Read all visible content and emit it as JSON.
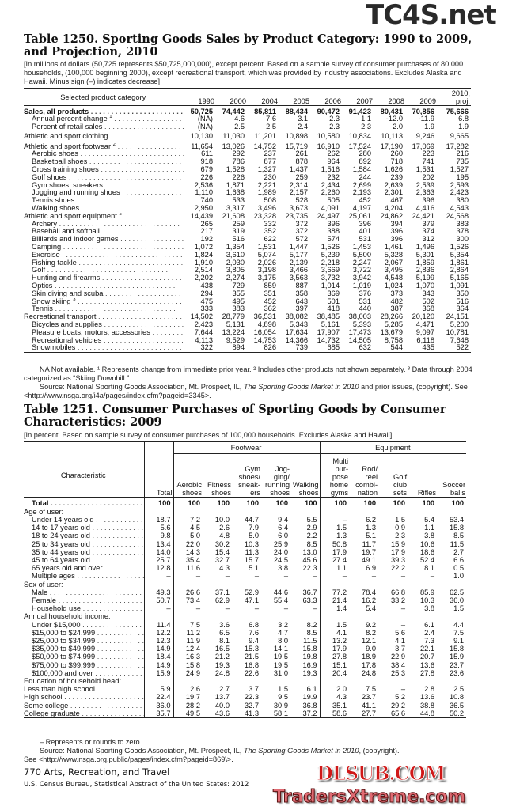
{
  "watermarks": {
    "top": "TC4S.net",
    "middle": "DLSUB.COM",
    "bottom": "TradersXtreme.com"
  },
  "t1250": {
    "title": "Table 1250. Sporting Goods Sales by Product Category: 1990 to 2009, and Projection, 2010",
    "headnote": "[In millions of dollars (50,725 represents $50,725,000,000), except percent. Based on a sample survey of consumer purchases of 80,000 households, (100,000 beginning 2000), except recreational transport, which was provided by industry associations. Excludes Alaska and Hawaii. Minus sign (–) indicates decrease]",
    "stub_header": "Selected product category",
    "columns": [
      "1990",
      "2000",
      "2004",
      "2005",
      "2006",
      "2007",
      "2008",
      "2009",
      "2010, proj."
    ],
    "rows": [
      {
        "label": "Sales, all products",
        "bold": true,
        "values": [
          "50,725",
          "74,442",
          "85,811",
          "88,434",
          "90,472",
          "91,423",
          "80,431",
          "70,856",
          "75,666"
        ]
      },
      {
        "label": "Annual percent change",
        "sup": "1",
        "indent": 1,
        "values": [
          "(NA)",
          "4.6",
          "7.6",
          "3.1",
          "2.3",
          "1.1",
          "-12.0",
          "-11.9",
          "6.8"
        ]
      },
      {
        "label": "Percent of retail sales",
        "indent": 1,
        "values": [
          "(NA)",
          "2.5",
          "2.5",
          "2.4",
          "2.3",
          "2.3",
          "2.0",
          "1.9",
          "1.9"
        ]
      },
      {
        "label": "Athletic and sport clothing",
        "gap": true,
        "values": [
          "10,130",
          "11,030",
          "11,201",
          "10,898",
          "10,580",
          "10,834",
          "10,113",
          "9,246",
          "9,665"
        ]
      },
      {
        "label": "Athletic and sport footwear",
        "sup": "2",
        "values": [
          "11,654",
          "13,026",
          "14,752",
          "15,719",
          "16,910",
          "17,524",
          "17,190",
          "17,069",
          "17,282"
        ]
      },
      {
        "label": "Aerobic shoes",
        "indent": 1,
        "values": [
          "611",
          "292",
          "237",
          "261",
          "262",
          "280",
          "260",
          "223",
          "216"
        ]
      },
      {
        "label": "Basketball shoes",
        "indent": 1,
        "values": [
          "918",
          "786",
          "877",
          "878",
          "964",
          "892",
          "718",
          "741",
          "735"
        ]
      },
      {
        "label": "Cross training shoes",
        "indent": 1,
        "values": [
          "679",
          "1,528",
          "1,327",
          "1,437",
          "1,516",
          "1,584",
          "1,626",
          "1,531",
          "1,527"
        ]
      },
      {
        "label": "Golf shoes",
        "indent": 1,
        "values": [
          "226",
          "226",
          "230",
          "259",
          "232",
          "244",
          "239",
          "202",
          "195"
        ]
      },
      {
        "label": "Gym shoes, sneakers",
        "indent": 1,
        "values": [
          "2,536",
          "1,871",
          "2,221",
          "2,314",
          "2,434",
          "2,699",
          "2,639",
          "2,539",
          "2,593"
        ]
      },
      {
        "label": "Jogging and running shoes",
        "indent": 1,
        "values": [
          "1,110",
          "1,638",
          "1,989",
          "2,157",
          "2,260",
          "2,193",
          "2,301",
          "2,363",
          "2,423"
        ]
      },
      {
        "label": "Tennis shoes",
        "indent": 1,
        "values": [
          "740",
          "533",
          "508",
          "528",
          "505",
          "452",
          "467",
          "396",
          "380"
        ]
      },
      {
        "label": "Walking shoes",
        "indent": 1,
        "values": [
          "2,950",
          "3,317",
          "3,496",
          "3,673",
          "4,091",
          "4,197",
          "4,204",
          "4,416",
          "4,543"
        ]
      },
      {
        "label": "Athletic and sport equipment",
        "sup": "2",
        "values": [
          "14,439",
          "21,608",
          "23,328",
          "23,735",
          "24,497",
          "25,061",
          "24,862",
          "24,421",
          "24,568"
        ]
      },
      {
        "label": "Archery",
        "indent": 1,
        "values": [
          "265",
          "259",
          "332",
          "372",
          "396",
          "396",
          "394",
          "379",
          "383"
        ]
      },
      {
        "label": "Baseball and softball",
        "indent": 1,
        "values": [
          "217",
          "319",
          "352",
          "372",
          "388",
          "401",
          "396",
          "374",
          "378"
        ]
      },
      {
        "label": "Billiards and indoor games",
        "indent": 1,
        "values": [
          "192",
          "516",
          "622",
          "572",
          "574",
          "531",
          "396",
          "312",
          "300"
        ]
      },
      {
        "label": "Camping",
        "indent": 1,
        "values": [
          "1,072",
          "1,354",
          "1,531",
          "1,447",
          "1,526",
          "1,453",
          "1,461",
          "1,496",
          "1,526"
        ]
      },
      {
        "label": "Exercise",
        "indent": 1,
        "values": [
          "1,824",
          "3,610",
          "5,074",
          "5,177",
          "5,239",
          "5,500",
          "5,328",
          "5,301",
          "5,354"
        ]
      },
      {
        "label": "Fishing tackle",
        "indent": 1,
        "values": [
          "1,910",
          "2,030",
          "2,026",
          "2,139",
          "2,218",
          "2,247",
          "2,067",
          "1,859",
          "1,861"
        ]
      },
      {
        "label": "Golf",
        "indent": 1,
        "values": [
          "2,514",
          "3,805",
          "3,198",
          "3,466",
          "3,669",
          "3,722",
          "3,495",
          "2,836",
          "2,864"
        ]
      },
      {
        "label": "Hunting and firearms",
        "indent": 1,
        "values": [
          "2,202",
          "2,274",
          "3,175",
          "3,563",
          "3,732",
          "3,942",
          "4,548",
          "5,199",
          "5,165"
        ]
      },
      {
        "label": "Optics",
        "indent": 1,
        "values": [
          "438",
          "729",
          "859",
          "887",
          "1,014",
          "1,019",
          "1,024",
          "1,070",
          "1,091"
        ]
      },
      {
        "label": "Skin diving and scuba",
        "indent": 1,
        "values": [
          "294",
          "355",
          "351",
          "358",
          "369",
          "376",
          "373",
          "343",
          "350"
        ]
      },
      {
        "label": "Snow skiing",
        "sup": "3",
        "indent": 1,
        "values": [
          "475",
          "495",
          "452",
          "643",
          "501",
          "531",
          "482",
          "502",
          "516"
        ]
      },
      {
        "label": "Tennis",
        "indent": 1,
        "values": [
          "333",
          "383",
          "362",
          "397",
          "418",
          "440",
          "387",
          "368",
          "364"
        ]
      },
      {
        "label": "Recreational transport",
        "values": [
          "14,502",
          "28,779",
          "36,531",
          "38,082",
          "38,485",
          "38,003",
          "28,266",
          "20,120",
          "24,151"
        ]
      },
      {
        "label": "Bicycles and supplies",
        "indent": 1,
        "values": [
          "2,423",
          "5,131",
          "4,898",
          "5,343",
          "5,161",
          "5,393",
          "5,285",
          "4,471",
          "5,200"
        ]
      },
      {
        "label": "Pleasure boats, motors, accessories",
        "indent": 1,
        "values": [
          "7,644",
          "13,224",
          "16,054",
          "17,634",
          "17,907",
          "17,473",
          "13,679",
          "9,097",
          "10,781"
        ]
      },
      {
        "label": "Recreational vehicles",
        "indent": 1,
        "values": [
          "4,113",
          "9,529",
          "14,753",
          "14,366",
          "14,732",
          "14,505",
          "8,758",
          "6,118",
          "7,648"
        ]
      },
      {
        "label": "Snowmobiles",
        "indent": 1,
        "values": [
          "322",
          "894",
          "826",
          "739",
          "685",
          "632",
          "544",
          "435",
          "522"
        ]
      }
    ],
    "footnote": "NA Not available. ¹ Represents change from immediate prior year. ² Includes other products not shown separately. ³ Data through 2004 categorized as “Skiing Downhill.”",
    "source_prefix": "Source: National Sporting Goods Association, Mt. Prospect, IL, ",
    "source_title": "The Sporting Goods Market in 2010",
    "source_suffix": " and prior issues, (copyright). See <http://www.nsga.org/i4a/pages/index.cfm?pageid=3345>."
  },
  "t1251": {
    "title": "Table 1251. Consumer Purchases of Sporting Goods by Consumer Characteristics: 2009",
    "headnote": "[In percent. Based on sample survey of consumer purchases of 100,000 households. Excludes Alaska and Hawaii]",
    "stub_header": "Characteristic",
    "group_footwear": "Footwear",
    "group_equipment": "Equipment",
    "columns": [
      "Total",
      "Aerobic shoes",
      "Fitness shoes",
      "Gym shoes/ sneak- ers",
      "Jog- ging/ running shoes",
      "Walking shoes",
      "Multi pur- pose home gyms",
      "Rod/ reel combi- nation",
      "Golf club sets",
      "Rifles",
      "Soccer balls"
    ],
    "rows": [
      {
        "label": "Total",
        "bold": true,
        "indent": 1,
        "values": [
          "100",
          "100",
          "100",
          "100",
          "100",
          "100",
          "100",
          "100",
          "100",
          "100",
          "100"
        ]
      },
      {
        "label": "Age of user:",
        "heading": true,
        "values": []
      },
      {
        "label": "Under 14 years old",
        "indent": 1,
        "values": [
          "18.7",
          "7.2",
          "10.0",
          "44.7",
          "9.4",
          "5.5",
          "–",
          "6.2",
          "1.5",
          "5.4",
          "53.4"
        ]
      },
      {
        "label": "14 to 17 years old",
        "indent": 1,
        "values": [
          "5.6",
          "4.5",
          "2.6",
          "7.9",
          "6.4",
          "2.9",
          "1.5",
          "1.3",
          "0.9",
          "1.1",
          "15.8"
        ]
      },
      {
        "label": "18 to 24 years old",
        "indent": 1,
        "values": [
          "9.8",
          "5.0",
          "4.8",
          "5.0",
          "6.0",
          "2.2",
          "1.3",
          "5.1",
          "2.3",
          "3.8",
          "8.5"
        ]
      },
      {
        "label": "25 to 34 years old",
        "indent": 1,
        "values": [
          "13.4",
          "22.0",
          "30.2",
          "10.3",
          "25.9",
          "8.5",
          "50.8",
          "11.7",
          "15.9",
          "10.6",
          "11.5"
        ]
      },
      {
        "label": "35 to 44 years old",
        "indent": 1,
        "values": [
          "14.0",
          "14.3",
          "15.4",
          "11.3",
          "24.0",
          "13.0",
          "17.9",
          "19.7",
          "17.9",
          "18.6",
          "2.7"
        ]
      },
      {
        "label": "45 to 64 years old",
        "indent": 1,
        "values": [
          "25.7",
          "35.4",
          "32.7",
          "15.7",
          "24.5",
          "45.6",
          "27.4",
          "49.1",
          "39.3",
          "52.4",
          "6.6"
        ]
      },
      {
        "label": "65 years old and over",
        "indent": 1,
        "values": [
          "12.8",
          "11.6",
          "4.3",
          "5.1",
          "3.8",
          "22.3",
          "1.1",
          "6.9",
          "22.2",
          "8.1",
          "0.5"
        ]
      },
      {
        "label": "Multiple ages",
        "indent": 1,
        "values": [
          "–",
          "–",
          "–",
          "–",
          "–",
          "–",
          "–",
          "–",
          "–",
          "–",
          "1.0"
        ]
      },
      {
        "label": "Sex of user:",
        "heading": true,
        "values": []
      },
      {
        "label": "Male",
        "indent": 1,
        "values": [
          "49.3",
          "26.6",
          "37.1",
          "52.9",
          "44.6",
          "36.7",
          "77.2",
          "78.4",
          "66.8",
          "85.9",
          "62.5"
        ]
      },
      {
        "label": "Female",
        "indent": 1,
        "values": [
          "50.7",
          "73.4",
          "62.9",
          "47.1",
          "55.4",
          "63.3",
          "21.4",
          "16.2",
          "33.2",
          "10.3",
          "36.0"
        ]
      },
      {
        "label": "Household use",
        "indent": 1,
        "values": [
          "–",
          "–",
          "–",
          "–",
          "–",
          "–",
          "1.4",
          "5.4",
          "–",
          "3.8",
          "1.5"
        ]
      },
      {
        "label": "Annual household income:",
        "heading": true,
        "values": []
      },
      {
        "label": "Under $15,000",
        "indent": 1,
        "values": [
          "11.4",
          "7.5",
          "3.6",
          "6.8",
          "3.2",
          "8.2",
          "1.5",
          "9.2",
          "–",
          "6.1",
          "4.4"
        ]
      },
      {
        "label": "$15,000 to $24,999",
        "indent": 1,
        "values": [
          "12.2",
          "11.2",
          "6.5",
          "7.6",
          "4.7",
          "8.5",
          "4.1",
          "8.2",
          "5.6",
          "2.4",
          "7.5"
        ]
      },
      {
        "label": "$25,000 to $34,999",
        "indent": 1,
        "values": [
          "12.3",
          "11.9",
          "8.1",
          "9.4",
          "8.0",
          "11.5",
          "13.2",
          "12.1",
          "4.1",
          "7.3",
          "9.1"
        ]
      },
      {
        "label": "$35,000 to $49,999",
        "indent": 1,
        "values": [
          "14.9",
          "12.4",
          "16.5",
          "15.3",
          "14.1",
          "15.8",
          "17.9",
          "9.0",
          "3.7",
          "22.1",
          "15.8"
        ]
      },
      {
        "label": "$50,000 to $74,999",
        "indent": 1,
        "values": [
          "18.4",
          "16.3",
          "21.2",
          "21.5",
          "19.5",
          "19.8",
          "27.8",
          "18.9",
          "22.9",
          "20.7",
          "15.9"
        ]
      },
      {
        "label": "$75,000 to $99,999",
        "indent": 1,
        "values": [
          "14.9",
          "15.8",
          "19.3",
          "16.8",
          "19.5",
          "16.9",
          "15.1",
          "17.8",
          "38.4",
          "13.6",
          "23.7"
        ]
      },
      {
        "label": "$100,000 and over",
        "indent": 1,
        "values": [
          "15.9",
          "24.9",
          "24.8",
          "22.6",
          "31.0",
          "19.3",
          "20.4",
          "24.8",
          "25.3",
          "27.8",
          "23.6"
        ]
      },
      {
        "label": "Education of household head:",
        "heading": true,
        "values": []
      },
      {
        "label": "Less than high school",
        "values": [
          "5.9",
          "2.6",
          "2.7",
          "3.7",
          "1.5",
          "6.1",
          "2.0",
          "7.5",
          "–",
          "2.8",
          "2.5"
        ]
      },
      {
        "label": "High school",
        "values": [
          "22.4",
          "19.7",
          "13.7",
          "22.3",
          "9.5",
          "19.9",
          "4.3",
          "23.7",
          "5.2",
          "13.6",
          "10.8"
        ]
      },
      {
        "label": "Some college",
        "values": [
          "36.0",
          "28.2",
          "40.0",
          "32.7",
          "30.9",
          "36.8",
          "35.1",
          "41.1",
          "29.2",
          "38.8",
          "36.5"
        ]
      },
      {
        "label": "College graduate",
        "values": [
          "35.7",
          "49.5",
          "43.6",
          "41.3",
          "58.1",
          "37.2",
          "58.6",
          "27.7",
          "65.6",
          "44.8",
          "50.2"
        ]
      }
    ],
    "footnote": "– Represents or rounds to zero.",
    "source_prefix": "Source: National Sporting Goods Association, Mt. Prospect, IL, ",
    "source_title": "The Sporting Goods Market in 2010",
    "source_suffix": ", (copyright).",
    "source_url": "See <http://www.nsga.org.public/pages/index.cfm?pageid=869\\>."
  },
  "footer": {
    "page": "770  Arts, Recreation, and Travel",
    "publication": "U.S. Census Bureau, Statistical Abstract of the United States: 2012"
  }
}
